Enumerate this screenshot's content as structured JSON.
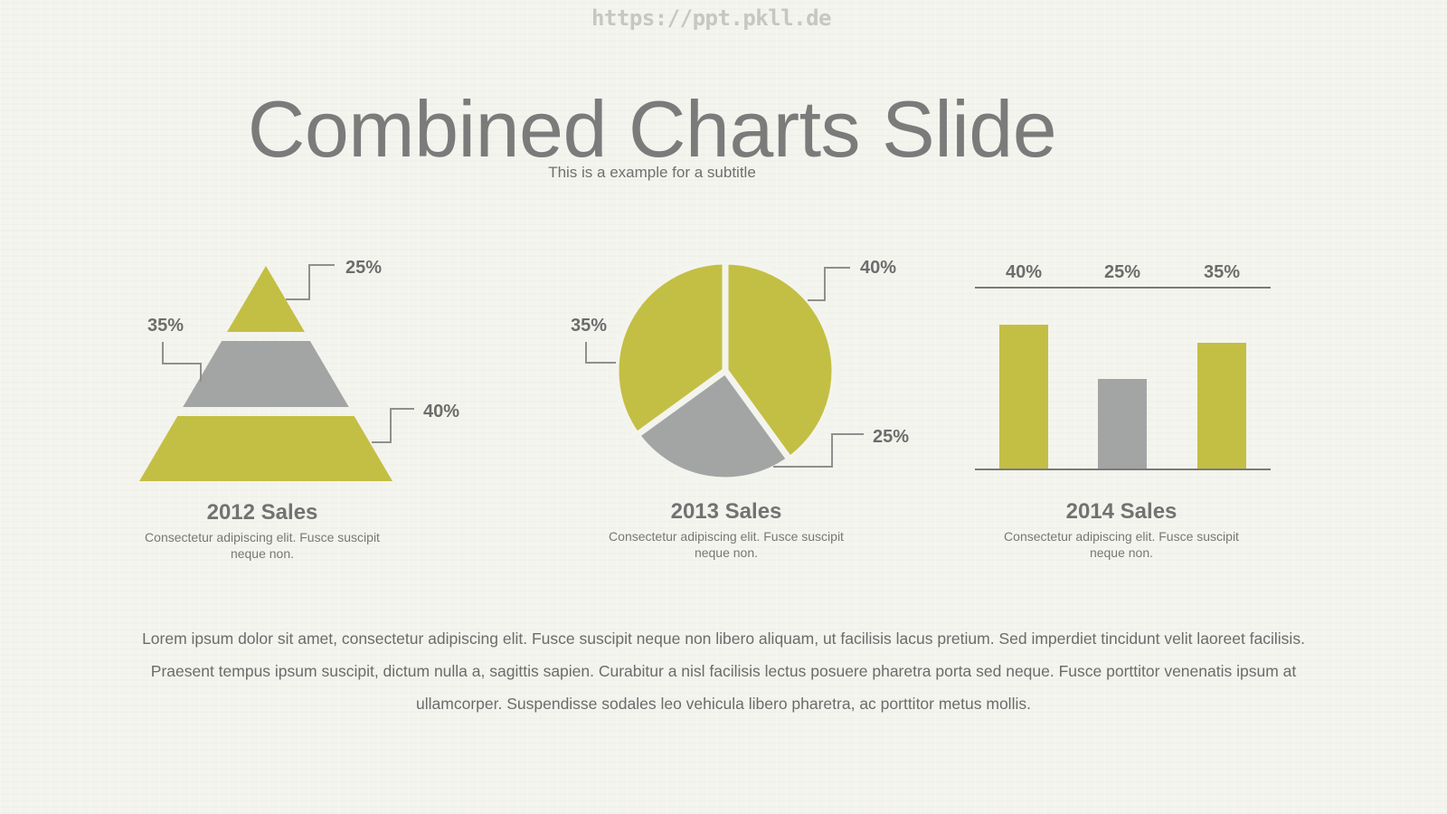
{
  "watermark": "https://ppt.pkll.de",
  "title": "Combined Charts Slide",
  "subtitle": "This is a example for a subtitle",
  "colors": {
    "olive": "#c3bf44",
    "gray": "#a3a5a5",
    "text": "#6c6c6c",
    "line": "#8f8f8f"
  },
  "chart_data": [
    {
      "type": "pyramid",
      "title": "2012 Sales",
      "description": "Consectetur adipiscing elit. Fusce suscipit neque non.",
      "segments": [
        {
          "label": "25%",
          "value": 25,
          "color": "olive"
        },
        {
          "label": "35%",
          "value": 35,
          "color": "gray"
        },
        {
          "label": "40%",
          "value": 40,
          "color": "olive"
        }
      ]
    },
    {
      "type": "pie",
      "title": "2013 Sales",
      "description": "Consectetur adipiscing elit. Fusce suscipit neque non.",
      "slices": [
        {
          "label": "40%",
          "value": 40,
          "color": "olive"
        },
        {
          "label": "25%",
          "value": 25,
          "color": "gray"
        },
        {
          "label": "35%",
          "value": 35,
          "color": "olive"
        }
      ]
    },
    {
      "type": "bar",
      "title": "2014 Sales",
      "description": "Consectetur adipiscing elit. Fusce suscipit neque non.",
      "categories": [
        "40%",
        "25%",
        "35%"
      ],
      "values": [
        40,
        25,
        35
      ],
      "colors": [
        "olive",
        "gray",
        "olive"
      ]
    }
  ],
  "body_text": "Lorem ipsum dolor sit amet, consectetur adipiscing elit. Fusce suscipit neque non libero aliquam, ut facilisis lacus pretium. Sed imperdiet tincidunt velit laoreet facilisis. Praesent tempus ipsum suscipit, dictum nulla a, sagittis sapien. Curabitur a nisl facilisis lectus posuere pharetra porta sed neque. Fusce porttitor venenatis ipsum at ullamcorper. Suspendisse sodales leo vehicula libero pharetra, ac porttitor metus mollis."
}
